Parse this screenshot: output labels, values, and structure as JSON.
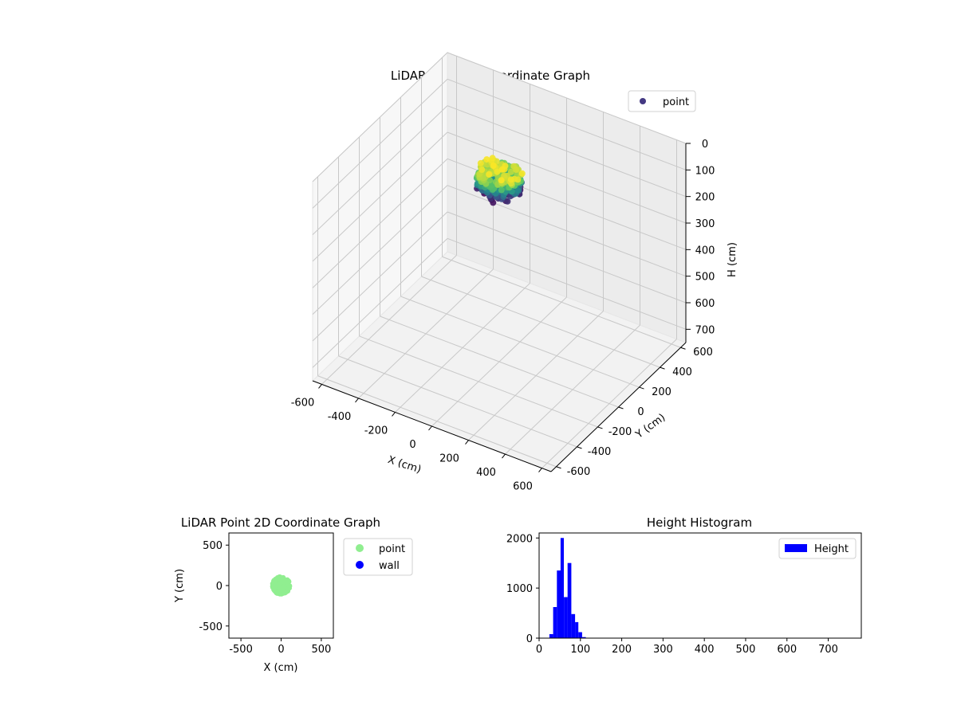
{
  "chart_data": [
    {
      "type": "scatter3d",
      "title": "LiDAR Point 3D Coordinate Graph",
      "xlabel": "X (cm)",
      "ylabel": "Y (cm)",
      "zlabel": "H (cm)",
      "xlim": [
        -650,
        650
      ],
      "ylim": [
        -650,
        650
      ],
      "zlim": [
        0,
        750
      ],
      "z_inverted": true,
      "x_ticks": [
        -600,
        -400,
        -200,
        0,
        200,
        400,
        600
      ],
      "y_ticks": [
        -600,
        -400,
        -200,
        0,
        200,
        400,
        600
      ],
      "z_ticks": [
        0,
        100,
        200,
        300,
        400,
        500,
        600,
        700
      ],
      "grid": true,
      "legend": [
        "point"
      ],
      "legend_position": "top-right",
      "series": [
        {
          "name": "point",
          "color": "#443983",
          "colormap": "viridis",
          "cluster": {
            "x_center": 0,
            "y_center": 0,
            "radius": 110,
            "h_min": 30,
            "h_max": 110
          }
        }
      ]
    },
    {
      "type": "scatter",
      "title": "LiDAR Point 2D Coordinate Graph",
      "xlabel": "X (cm)",
      "ylabel": "Y (cm)",
      "xlim": [
        -650,
        650
      ],
      "ylim": [
        -650,
        650
      ],
      "x_ticks": [
        -500,
        0,
        500
      ],
      "y_ticks": [
        -500,
        0,
        500
      ],
      "legend_position": "outside-right",
      "series": [
        {
          "name": "point",
          "color": "#90ee90",
          "cluster": {
            "x_center": 0,
            "y_center": 0,
            "radius": 110
          }
        },
        {
          "name": "wall",
          "color": "#0000ff",
          "points": []
        }
      ]
    },
    {
      "type": "histogram",
      "title": "Height Histogram",
      "xlim": [
        0,
        780
      ],
      "ylim": [
        0,
        2100
      ],
      "x_ticks": [
        0,
        100,
        200,
        300,
        400,
        500,
        600,
        700
      ],
      "y_ticks": [
        0,
        1000,
        2000
      ],
      "bar_color": "#0000ff",
      "legend": [
        "Height"
      ],
      "legend_position": "top-right",
      "bins": [
        {
          "x0": 25,
          "x1": 34,
          "count": 80
        },
        {
          "x0": 34,
          "x1": 43,
          "count": 620
        },
        {
          "x0": 43,
          "x1": 52,
          "count": 1350
        },
        {
          "x0": 52,
          "x1": 60,
          "count": 2000
        },
        {
          "x0": 60,
          "x1": 69,
          "count": 820
        },
        {
          "x0": 69,
          "x1": 78,
          "count": 1500
        },
        {
          "x0": 78,
          "x1": 87,
          "count": 480
        },
        {
          "x0": 87,
          "x1": 95,
          "count": 320
        },
        {
          "x0": 95,
          "x1": 104,
          "count": 120
        },
        {
          "x0": 104,
          "x1": 113,
          "count": 20
        }
      ]
    }
  ]
}
